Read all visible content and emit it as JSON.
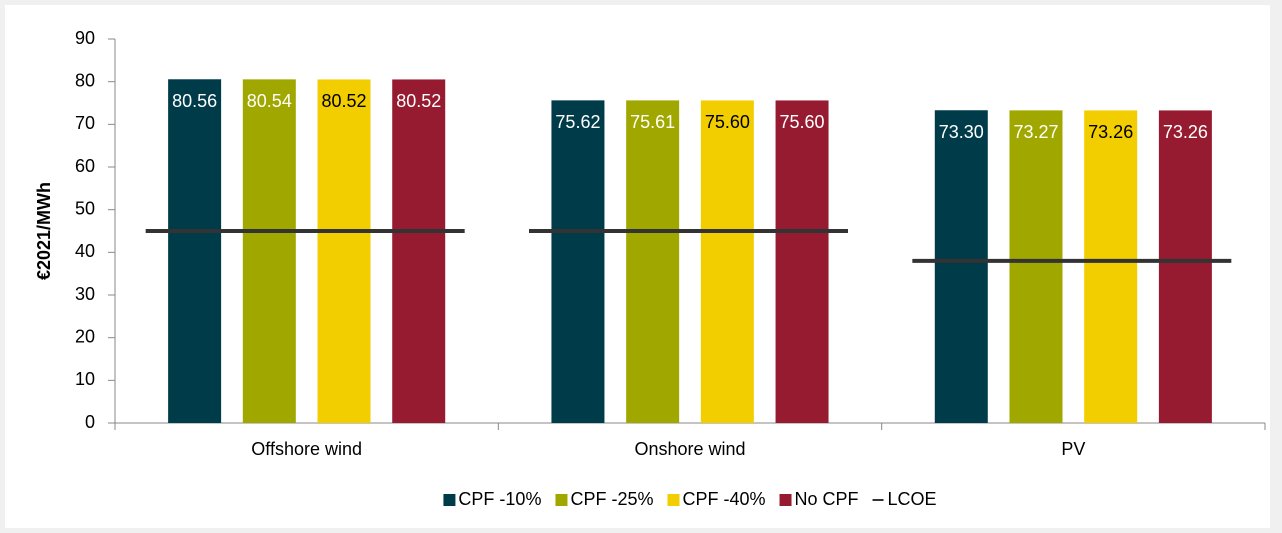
{
  "chart_data": {
    "type": "bar",
    "ylabel": "€2021/MWh",
    "categories": [
      "Offshore wind",
      "Onshore wind",
      "PV"
    ],
    "ylim": [
      0,
      90
    ],
    "yticks": [
      0,
      10,
      20,
      30,
      40,
      50,
      60,
      70,
      80,
      90
    ],
    "legend": "bottom",
    "series": [
      {
        "name": "CPF -10%",
        "color": "#003b4a",
        "values": [
          80.56,
          75.62,
          73.3
        ],
        "value_labels": [
          "80.56",
          "75.62",
          "73.30"
        ]
      },
      {
        "name": "CPF -25%",
        "color": "#a0a800",
        "values": [
          80.54,
          75.61,
          73.27
        ],
        "value_labels": [
          "80.54",
          "75.61",
          "73.27"
        ]
      },
      {
        "name": "CPF -40%",
        "color": "#f2cd00",
        "values": [
          80.52,
          75.6,
          73.26
        ],
        "value_labels": [
          "80.52",
          "75.60",
          "73.26"
        ]
      },
      {
        "name": "No CPF",
        "color": "#961b30",
        "values": [
          80.52,
          75.6,
          73.26
        ],
        "value_labels": [
          "80.52",
          "75.60",
          "73.26"
        ]
      },
      {
        "name": "LCOE",
        "color": "#333333",
        "style": "line",
        "values": [
          45,
          45,
          38
        ]
      }
    ]
  }
}
